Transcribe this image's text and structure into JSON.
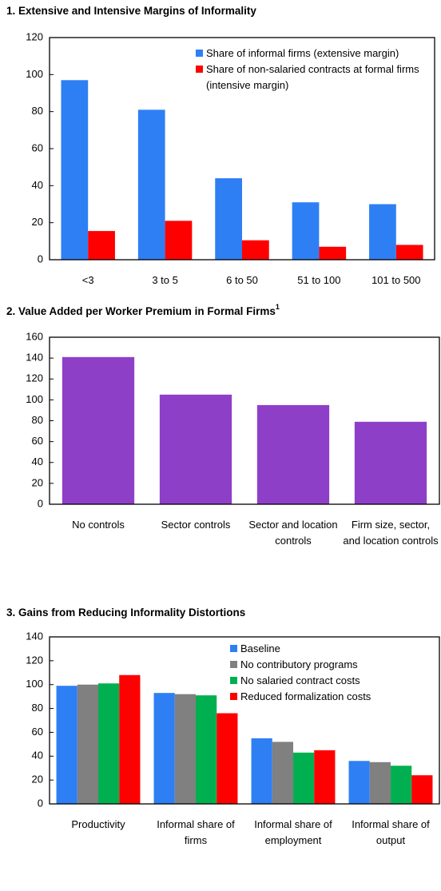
{
  "charts": [
    {
      "chart_data": {
        "type": "bar",
        "title": "1.  Extensive and Intensive Margins of Informality",
        "categories": [
          "<3",
          "3 to 5",
          "6 to 50",
          "51 to 100",
          "101 to 500"
        ],
        "series": [
          {
            "name": "Share of informal firms (extensive margin)",
            "color": "#2f7ff4",
            "values": [
              97,
              81,
              44,
              31,
              30
            ]
          },
          {
            "name": "Share of non-salaried contracts at formal firms (intensive margin)",
            "color": "#ff0000",
            "values": [
              15.5,
              21,
              10.5,
              7,
              8
            ]
          }
        ],
        "ylim": [
          0,
          120
        ],
        "yticks": [
          0,
          20,
          40,
          60,
          80,
          100,
          120
        ],
        "legend": "top-right"
      }
    },
    {
      "chart_data": {
        "type": "bar",
        "title": "2.  Value Added per Worker Premium in Formal Firms",
        "title_note": "1",
        "categories": [
          "No controls",
          "Sector controls",
          "Sector and location controls",
          "Firm size, sector, and location controls"
        ],
        "values": [
          141,
          105,
          95,
          79
        ],
        "color": "#8e3fc8",
        "ylim": [
          0,
          160
        ],
        "yticks": [
          0,
          20,
          40,
          60,
          80,
          100,
          120,
          140,
          160
        ]
      }
    },
    {
      "chart_data": {
        "type": "bar",
        "title": "3.  Gains from Reducing Informality Distortions",
        "categories": [
          "Productivity",
          "Informal share of firms",
          "Informal share of employment",
          "Informal share of output"
        ],
        "series": [
          {
            "name": "Baseline",
            "color": "#2f7ff4",
            "values": [
              99,
              93,
              55,
              36
            ]
          },
          {
            "name": "No contributory programs",
            "color": "#808080",
            "values": [
              100,
              92,
              52,
              35
            ]
          },
          {
            "name": "No salaried contract costs",
            "color": "#00b050",
            "values": [
              101,
              91,
              43,
              32
            ]
          },
          {
            "name": "Reduced formalization costs",
            "color": "#ff0000",
            "values": [
              108,
              76,
              45,
              24
            ]
          }
        ],
        "ylim": [
          0,
          140
        ],
        "yticks": [
          0,
          20,
          40,
          60,
          80,
          100,
          120,
          140
        ],
        "legend": "top-right"
      }
    }
  ]
}
